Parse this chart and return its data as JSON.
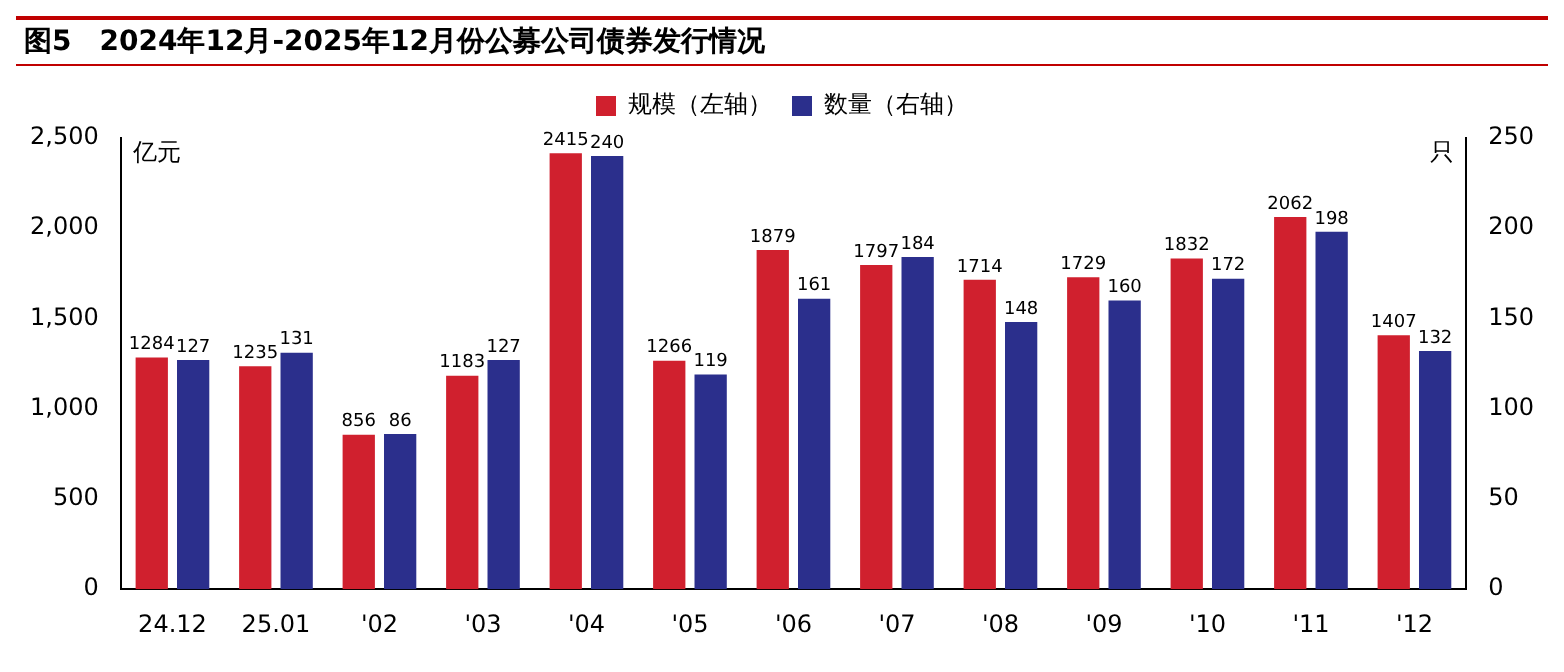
{
  "chart_data": {
    "type": "bar",
    "title": "图5　2024年12月-2025年12月份公募公司债券发行情况",
    "ylabel": "亿元",
    "y2label": "只",
    "categories": [
      "24.12",
      "25.01",
      "'02",
      "'03",
      "'04",
      "'05",
      "'06",
      "'07",
      "'08",
      "'09",
      "'10",
      "'11",
      "'12"
    ],
    "series": [
      {
        "name": "规模（左轴）",
        "color": "#d0202e",
        "values": [
          1284,
          1235,
          856,
          1183,
          2415,
          1266,
          1879,
          1797,
          1714,
          1729,
          1832,
          2062,
          1407
        ]
      },
      {
        "name": "数量（右轴）",
        "color": "#2b2f8c",
        "axis": "y2",
        "values": [
          127,
          131,
          86,
          127,
          240,
          119,
          161,
          184,
          148,
          160,
          172,
          198,
          132
        ]
      }
    ],
    "ylim": [
      0,
      2500
    ],
    "yticks": [
      0,
      500,
      {
        "value": 1000,
        "label": "1,000"
      },
      {
        "value": 1500,
        "label": "1,500"
      },
      {
        "value": 2000,
        "label": "2,000"
      },
      {
        "value": 2500,
        "label": "2,500"
      }
    ],
    "y2lim": [
      0,
      250
    ],
    "y2ticks": [
      0,
      50,
      100,
      150,
      200,
      250
    ],
    "legend": "top",
    "data_labels": true,
    "grid": false
  }
}
